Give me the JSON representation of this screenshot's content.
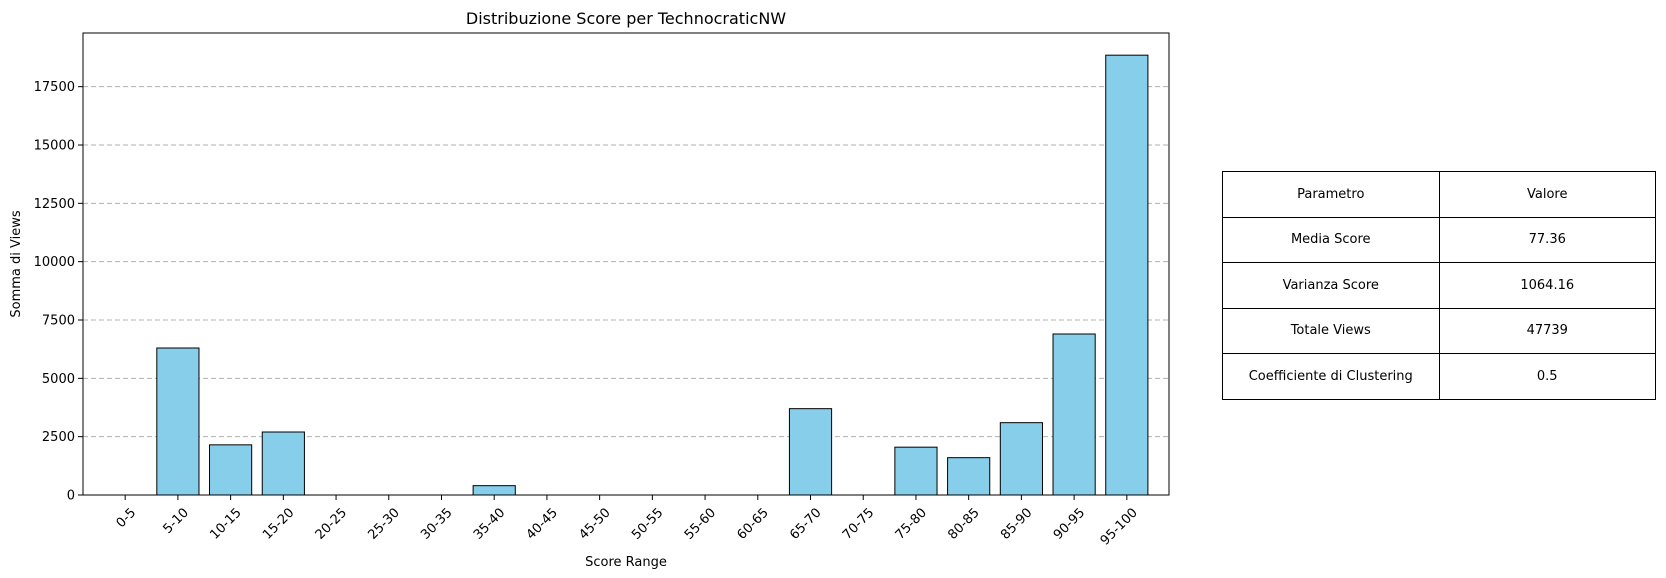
{
  "colors": {
    "bar_fill": "#87CEEB",
    "bar_edge": "#000000",
    "grid": "#b0b0b0"
  },
  "chart_data": {
    "type": "bar",
    "title": "Distribuzione Score per TechnocraticNW",
    "xlabel": "Score Range",
    "ylabel": "Somma di Views",
    "categories": [
      "0-5",
      "5-10",
      "10-15",
      "15-20",
      "20-25",
      "25-30",
      "30-35",
      "35-40",
      "40-45",
      "45-50",
      "50-55",
      "55-60",
      "60-65",
      "65-70",
      "70-75",
      "75-80",
      "80-85",
      "85-90",
      "90-95",
      "95-100"
    ],
    "values": [
      0,
      6300,
      2150,
      2700,
      0,
      0,
      0,
      400,
      0,
      0,
      0,
      0,
      0,
      3700,
      0,
      2050,
      1600,
      3100,
      6900,
      18850
    ],
    "ylim": [
      0,
      19800
    ],
    "yticks": [
      0,
      2500,
      5000,
      7500,
      10000,
      12500,
      15000,
      17500
    ],
    "grid": "y-dashed",
    "legend": "none"
  },
  "table": {
    "header": [
      "Parametro",
      "Valore"
    ],
    "rows": [
      [
        "Media Score",
        "77.36"
      ],
      [
        "Varianza Score",
        "1064.16"
      ],
      [
        "Totale Views",
        "47739"
      ],
      [
        "Coefficiente di Clustering",
        "0.5"
      ]
    ]
  }
}
